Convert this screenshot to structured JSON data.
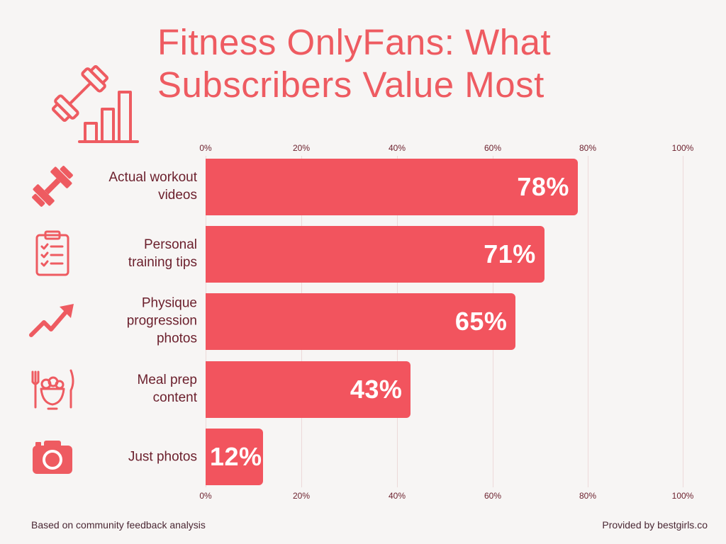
{
  "title": {
    "line1": "Fitness OnlyFans: What",
    "line2": "Subscribers Value Most"
  },
  "header_icon": "dumbbell-and-bar-chart-icon",
  "accent_color": "#f2545e",
  "title_color": "#ee5b61",
  "label_color": "#6b1f2c",
  "chart_data": {
    "type": "bar",
    "orientation": "horizontal",
    "title": "Fitness OnlyFans: What Subscribers Value Most",
    "xlim": [
      0,
      100
    ],
    "ticks": [
      "0%",
      "20%",
      "40%",
      "60%",
      "80%",
      "100%"
    ],
    "tick_values": [
      0,
      20,
      40,
      60,
      80,
      100
    ],
    "grid": true,
    "categories": [
      "Actual workout videos",
      "Personal training tips",
      "Physique progression photos",
      "Meal prep content",
      "Just photos"
    ],
    "category_lines": [
      "Actual workout\nvideos",
      "Personal\ntraining tips",
      "Physique\nprogression\nphotos",
      "Meal prep\ncontent",
      "Just photos"
    ],
    "values": [
      78,
      71,
      65,
      43,
      12
    ],
    "value_labels": [
      "78%",
      "71%",
      "65%",
      "43%",
      "12%"
    ],
    "icons": [
      "dumbbell-icon",
      "clipboard-checklist-icon",
      "trending-up-arrow-icon",
      "meal-bowl-icon",
      "camera-icon"
    ]
  },
  "footer": {
    "left": "Based on community feedback analysis",
    "right": "Provided by bestgirls.co"
  }
}
